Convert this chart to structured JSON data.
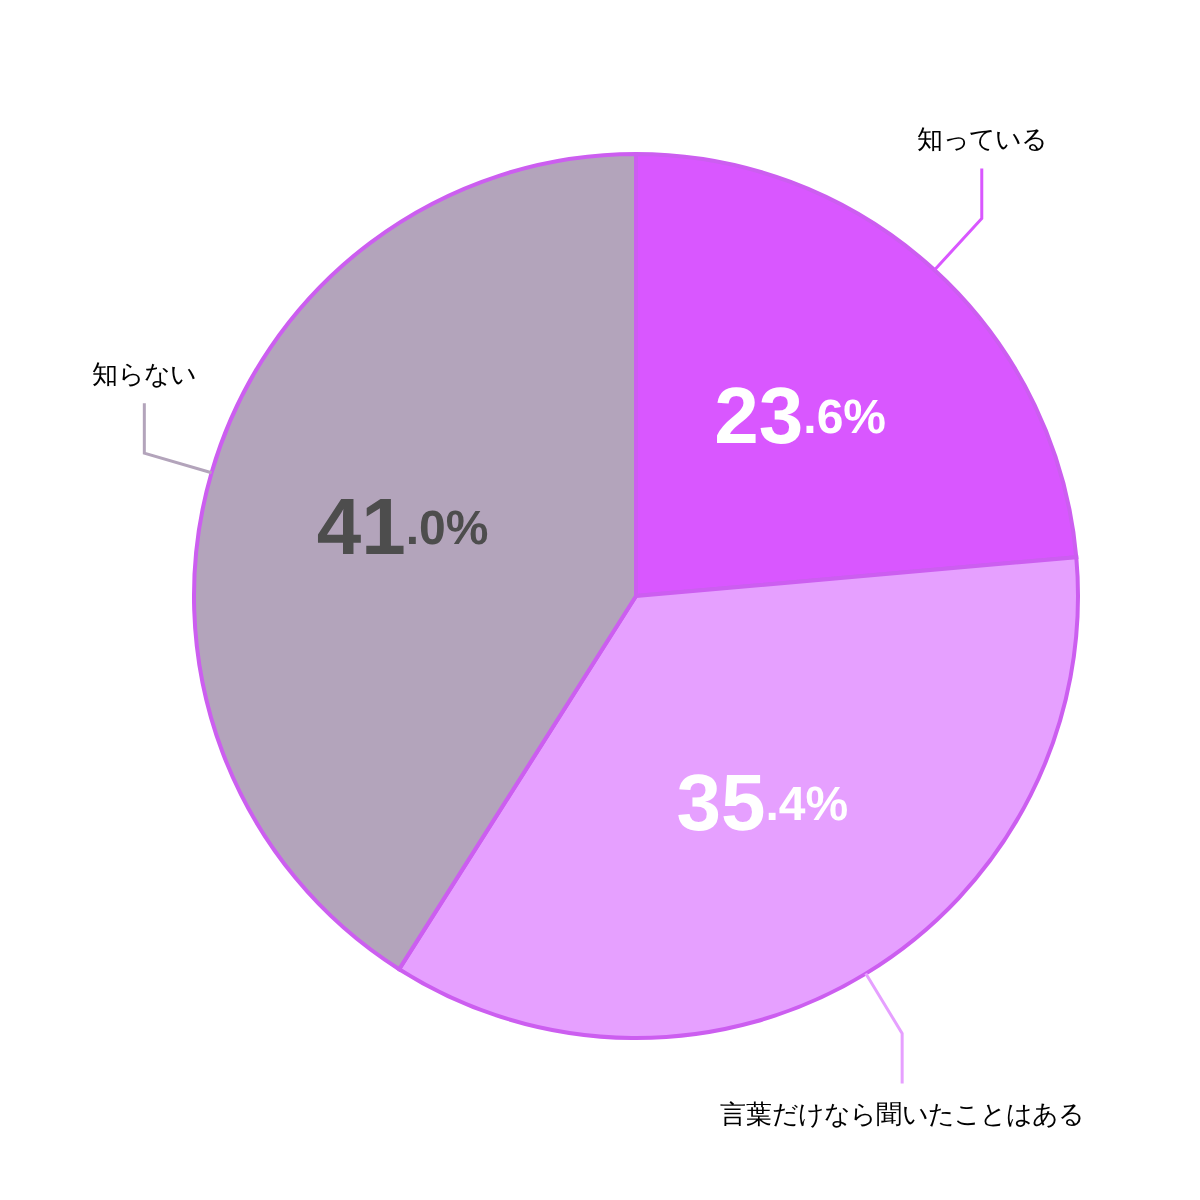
{
  "chart_data": {
    "type": "pie",
    "categories": [
      "知っている",
      "言葉だけなら聞いたことはある",
      "知らない"
    ],
    "values": [
      23.6,
      35.4,
      41.0
    ],
    "colors": [
      "#d957ff",
      "#e6a0ff",
      "#b3a4bb"
    ],
    "value_labels": [
      "23.6%",
      "35.4%",
      "41.0%"
    ]
  }
}
